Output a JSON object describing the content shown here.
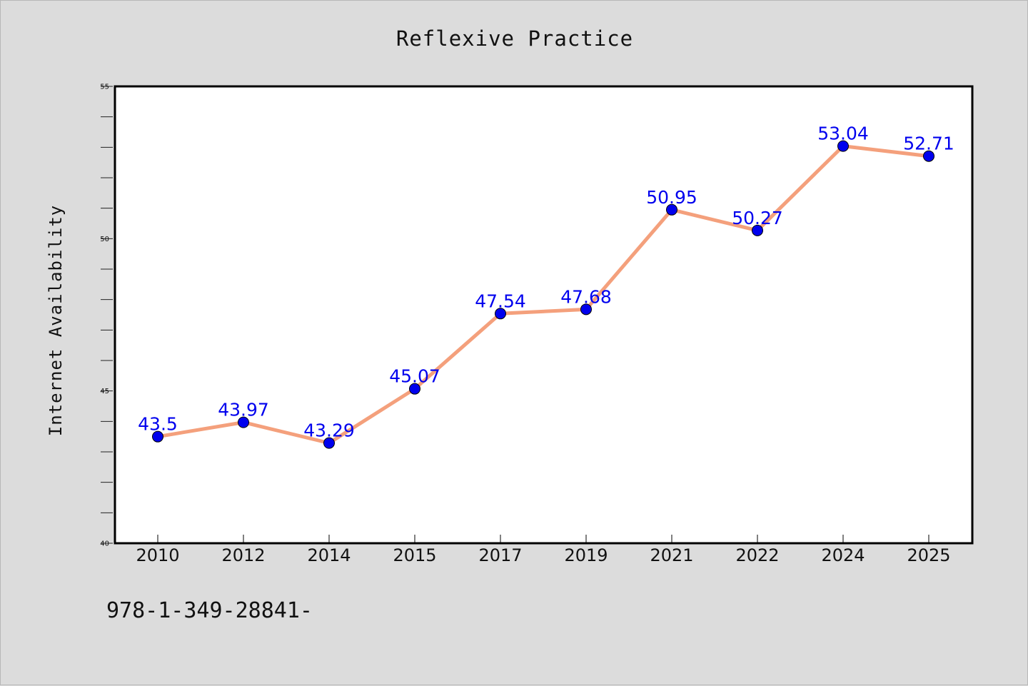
{
  "chart_data": {
    "type": "line",
    "title": "Reflexive Practice",
    "xlabel": "",
    "ylabel": "Internet Availability",
    "categories": [
      "2010",
      "2012",
      "2014",
      "2015",
      "2017",
      "2019",
      "2021",
      "2022",
      "2024",
      "2025"
    ],
    "series": [
      {
        "values": [
          43.5,
          43.97,
          43.29,
          45.07,
          47.54,
          47.68,
          50.95,
          50.27,
          53.04,
          52.71
        ],
        "labels": [
          "43.5",
          "43.97",
          "43.29",
          "45.07",
          "47.54",
          "47.68",
          "50.95",
          "50.27",
          "53.04",
          "52.71"
        ]
      }
    ],
    "ylim": [
      40,
      55
    ],
    "yticks": [
      "40",
      "45",
      "50",
      "55"
    ],
    "grid": false,
    "legend": "none",
    "colors": {
      "line": "#f4a07c",
      "marker": "#0000ee",
      "data_label": "#0000ee",
      "background": "#dcdcdc",
      "plot_area": "#ffffff"
    }
  },
  "footer": {
    "text": "978-1-349-28841-"
  }
}
